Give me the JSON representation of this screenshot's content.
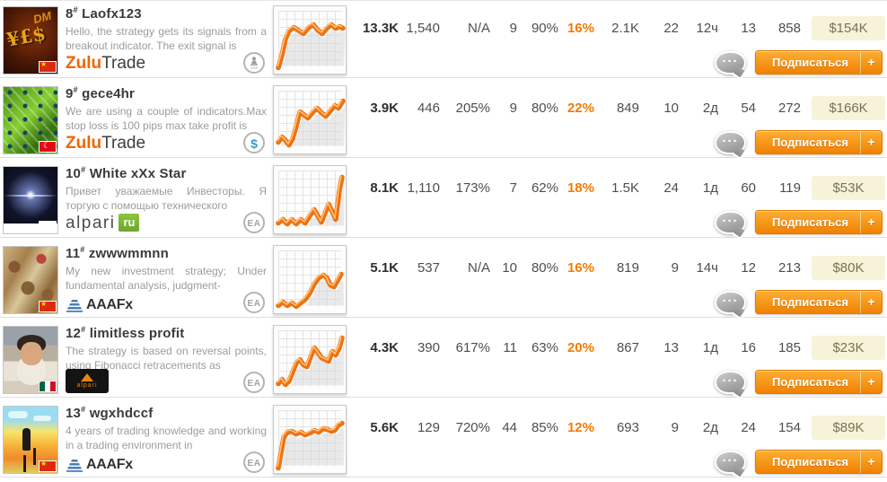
{
  "ui": {
    "subscribe": "Подписаться",
    "plus": "+",
    "hash": "#",
    "ea": "EA",
    "dollar": "$",
    "trader_caption": "AAA"
  },
  "brokers": {
    "zulutrade": {
      "a": "Zulu",
      "b": "Trade"
    },
    "alpari_ru": {
      "a": "alpari",
      "b": "ru"
    },
    "aaafx": {
      "a": "AAAFx"
    },
    "alpari_black": {
      "a": "alpari"
    }
  },
  "colors": {
    "accent": "#f47a00",
    "money_bg": "#f7f3d8",
    "button_top": "#fcaf35",
    "button_bottom": "#f18100"
  },
  "rows": [
    {
      "rank": "8",
      "name": "Laofx123",
      "desc": "Hello, the strategy gets its signals from a breakout indicator. The exit signal is",
      "broker": "zulutrade",
      "badge": "trader",
      "flag": "cn",
      "stats": [
        "13.3K",
        "1,540",
        "N/A",
        "9",
        "90%",
        "16%",
        "2.1K",
        "22",
        "12ч",
        "13",
        "858"
      ],
      "money": "$154K",
      "spark": [
        [
          5,
          66
        ],
        [
          9,
          52
        ],
        [
          13,
          34
        ],
        [
          17,
          25
        ],
        [
          22,
          21
        ],
        [
          27,
          24
        ],
        [
          33,
          28
        ],
        [
          39,
          21
        ],
        [
          44,
          18
        ],
        [
          49,
          24
        ],
        [
          54,
          28
        ],
        [
          59,
          22
        ],
        [
          64,
          18
        ],
        [
          69,
          22
        ],
        [
          73,
          20
        ],
        [
          77,
          22
        ]
      ]
    },
    {
      "rank": "9",
      "name": "gece4hr",
      "desc": "We are using a couple of indicators.Max stop loss is 100 pips max take profit is",
      "broker": "zulutrade",
      "badge": "dollar",
      "flag": "tr",
      "stats": [
        "3.9K",
        "446",
        "205%",
        "9",
        "80%",
        "22%",
        "849",
        "10",
        "2д",
        "54",
        "272"
      ],
      "money": "$166K",
      "spark": [
        [
          5,
          60
        ],
        [
          9,
          54
        ],
        [
          13,
          58
        ],
        [
          17,
          63
        ],
        [
          21,
          56
        ],
        [
          25,
          42
        ],
        [
          29,
          26
        ],
        [
          33,
          29
        ],
        [
          38,
          33
        ],
        [
          43,
          27
        ],
        [
          48,
          22
        ],
        [
          53,
          27
        ],
        [
          58,
          31
        ],
        [
          63,
          25
        ],
        [
          68,
          19
        ],
        [
          72,
          22
        ],
        [
          77,
          14
        ]
      ]
    },
    {
      "rank": "10",
      "name": "White xXx Star",
      "desc": "Привет уважаемые Инвесторы. Я торгую с помощью технического",
      "broker": "alpari_ru",
      "badge": "ea",
      "flag": "ru",
      "stats": [
        "8.1K",
        "1,110",
        "173%",
        "7",
        "62%",
        "18%",
        "1.5K",
        "24",
        "1д",
        "60",
        "119"
      ],
      "money": "$53K",
      "spark": [
        [
          5,
          61
        ],
        [
          10,
          57
        ],
        [
          15,
          62
        ],
        [
          20,
          57
        ],
        [
          25,
          62
        ],
        [
          30,
          57
        ],
        [
          35,
          61
        ],
        [
          40,
          53
        ],
        [
          45,
          46
        ],
        [
          49,
          53
        ],
        [
          53,
          60
        ],
        [
          57,
          50
        ],
        [
          61,
          40
        ],
        [
          65,
          48
        ],
        [
          69,
          57
        ],
        [
          73,
          25
        ],
        [
          76,
          10
        ]
      ]
    },
    {
      "rank": "11",
      "name": "zwwwmmnn",
      "desc": "My new investment strategy; Under fundamental analysis, judgment-",
      "broker": "aaafx",
      "badge": "ea",
      "flag": "cn",
      "stats": [
        "5.1K",
        "537",
        "N/A",
        "10",
        "80%",
        "16%",
        "819",
        "9",
        "14ч",
        "12",
        "213"
      ],
      "money": "$80K",
      "spark": [
        [
          5,
          64
        ],
        [
          10,
          60
        ],
        [
          15,
          64
        ],
        [
          20,
          61
        ],
        [
          25,
          65
        ],
        [
          30,
          61
        ],
        [
          35,
          57
        ],
        [
          40,
          50
        ],
        [
          45,
          40
        ],
        [
          50,
          33
        ],
        [
          55,
          30
        ],
        [
          59,
          33
        ],
        [
          63,
          41
        ],
        [
          67,
          43
        ],
        [
          71,
          36
        ],
        [
          75,
          29
        ]
      ]
    },
    {
      "rank": "12",
      "name": "limitless profit",
      "desc": "The strategy is based on reversal points, using Fibonacci retracements as",
      "broker": "alpari_black",
      "badge": "ea",
      "flag": "mx",
      "stats": [
        "4.3K",
        "390",
        "617%",
        "11",
        "63%",
        "20%",
        "867",
        "13",
        "1д",
        "16",
        "185"
      ],
      "money": "$23K",
      "spark": [
        [
          5,
          62
        ],
        [
          9,
          57
        ],
        [
          13,
          63
        ],
        [
          17,
          59
        ],
        [
          21,
          49
        ],
        [
          25,
          39
        ],
        [
          29,
          35
        ],
        [
          33,
          41
        ],
        [
          37,
          43
        ],
        [
          41,
          32
        ],
        [
          45,
          22
        ],
        [
          49,
          27
        ],
        [
          53,
          33
        ],
        [
          57,
          35
        ],
        [
          61,
          37
        ],
        [
          65,
          26
        ],
        [
          69,
          30
        ],
        [
          73,
          22
        ],
        [
          76,
          11
        ]
      ]
    },
    {
      "rank": "13",
      "name": "wgxhdccf",
      "desc": "4 years of trading knowledge and working in a trading environment in",
      "broker": "aaafx",
      "badge": "ea",
      "flag": "cn",
      "stats": [
        "5.6K",
        "129",
        "720%",
        "44",
        "85%",
        "12%",
        "693",
        "9",
        "2д",
        "24",
        "154"
      ],
      "money": "$89K",
      "spark": [
        [
          5,
          67
        ],
        [
          8,
          50
        ],
        [
          11,
          33
        ],
        [
          15,
          27
        ],
        [
          20,
          26
        ],
        [
          25,
          29
        ],
        [
          30,
          27
        ],
        [
          35,
          30
        ],
        [
          40,
          28
        ],
        [
          45,
          25
        ],
        [
          50,
          27
        ],
        [
          55,
          23
        ],
        [
          60,
          24
        ],
        [
          64,
          26
        ],
        [
          68,
          25
        ],
        [
          72,
          19
        ],
        [
          76,
          17
        ]
      ]
    }
  ]
}
